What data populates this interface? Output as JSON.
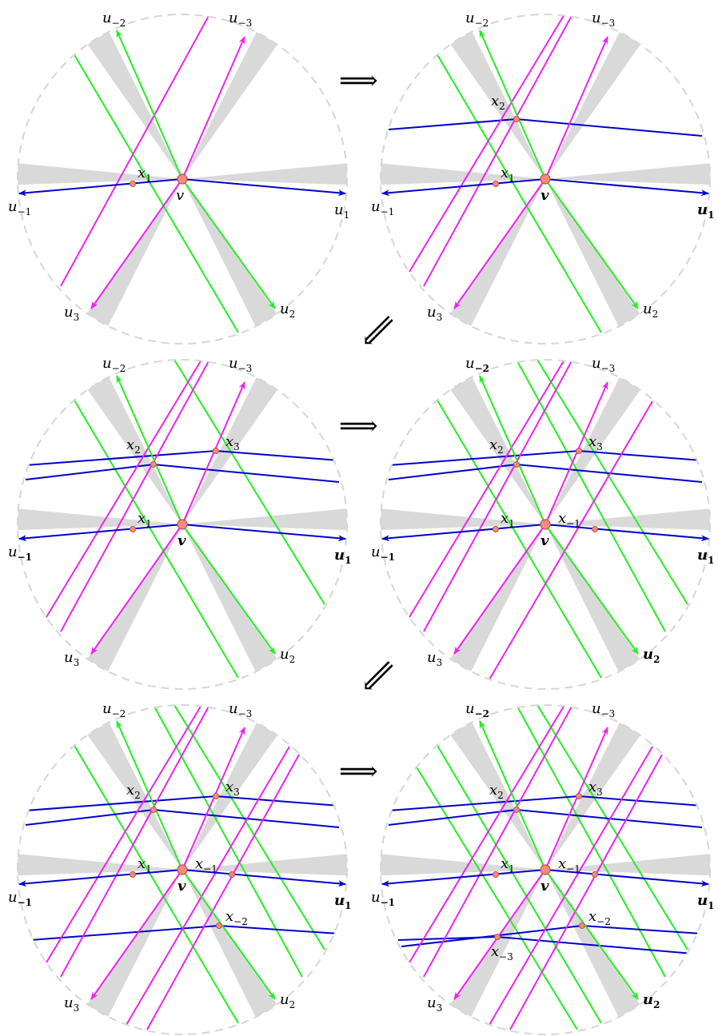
{
  "colors": {
    "u1_family": "#0000cc",
    "u2_family": "#22ee22",
    "u3_family": "#ee22ee",
    "sector_fill": "#d9d9d9",
    "circle_stroke": "#d6d6d6",
    "vertex_fill": "#f08c7c",
    "vertex_stroke": "#c0504d"
  },
  "labels": {
    "u1": "u",
    "u1_sub": "1",
    "um1": "u",
    "um1_sub": "−1",
    "u2": "u",
    "u2_sub": "2",
    "um2": "u",
    "um2_sub": "−2",
    "u3": "u",
    "u3_sub": "3",
    "um3": "u",
    "um3_sub": "−3",
    "v": "v",
    "x1": "x",
    "x1_sub": "1",
    "x2": "x",
    "x2_sub": "2",
    "x3": "x",
    "x3_sub": "3",
    "xm1": "x",
    "xm1_sub": "−1",
    "xm2": "x",
    "xm2_sub": "−2",
    "xm3": "x",
    "xm3_sub": "−3"
  },
  "transitions": [
    "⟹",
    "⟸",
    "⟹",
    "⟸",
    "⟹"
  ],
  "panels": [
    {
      "id": 1,
      "points": [
        "v",
        "x1"
      ]
    },
    {
      "id": 2,
      "points": [
        "v",
        "x1",
        "x2"
      ]
    },
    {
      "id": 3,
      "points": [
        "v",
        "x1",
        "x2",
        "x3"
      ]
    },
    {
      "id": 4,
      "points": [
        "v",
        "x1",
        "x2",
        "x3",
        "xm1"
      ]
    },
    {
      "id": 5,
      "points": [
        "v",
        "x1",
        "x2",
        "x3",
        "xm1",
        "xm2"
      ]
    },
    {
      "id": 6,
      "points": [
        "v",
        "x1",
        "x2",
        "x3",
        "xm1",
        "xm2",
        "xm3"
      ]
    }
  ]
}
